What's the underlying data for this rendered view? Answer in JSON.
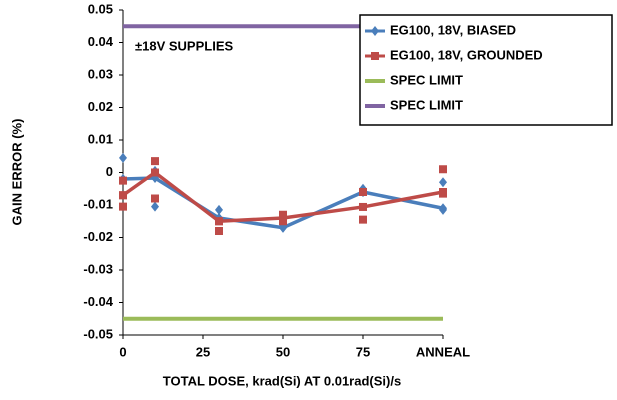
{
  "chart_data": {
    "type": "line",
    "xlabel": "TOTAL DOSE, krad(Si) AT 0.01rad(Si)/s",
    "ylabel": "GAIN ERROR (%)",
    "annotation": "±18V SUPPLIES",
    "x": [
      0,
      10,
      30,
      50,
      75,
      100
    ],
    "xlim": [
      0,
      100
    ],
    "xticks": [
      0,
      25,
      50,
      75,
      {
        "value": 100,
        "label": "ANNEAL"
      }
    ],
    "ylim": [
      -0.05,
      0.05
    ],
    "yticks": [
      0.05,
      0.04,
      0.03,
      0.02,
      0.01,
      0,
      -0.01,
      -0.02,
      -0.03,
      -0.04,
      -0.05
    ],
    "series": [
      {
        "name": "EG100, 18V, BIASED",
        "color": "#4a7ebb",
        "marker": "diamond",
        "values": [
          -0.002,
          -0.0017,
          -0.014,
          -0.017,
          -0.006,
          -0.011
        ],
        "samples_x": [
          0,
          0,
          10,
          10,
          30,
          30,
          50,
          50,
          75,
          75,
          100,
          100
        ],
        "samples": [
          0.0045,
          -0.002,
          -0.0105,
          0.0005,
          -0.0115,
          -0.014,
          -0.016,
          -0.017,
          -0.006,
          -0.005,
          -0.0115,
          -0.003
        ]
      },
      {
        "name": "EG100, 18V, GROUNDED",
        "color": "#be4b48",
        "marker": "square",
        "values": [
          -0.007,
          0.0,
          -0.015,
          -0.014,
          -0.0106,
          -0.006
        ],
        "samples_x": [
          0,
          0,
          0,
          10,
          10,
          10,
          30,
          30,
          50,
          50,
          75,
          75,
          100,
          100
        ],
        "samples": [
          -0.0025,
          -0.0105,
          -0.007,
          0.0035,
          -0.008,
          0.0,
          -0.018,
          -0.015,
          -0.013,
          -0.015,
          -0.0145,
          -0.006,
          0.001,
          -0.0065
        ]
      }
    ],
    "spec_limits": [
      {
        "name": "SPEC LIMIT",
        "color": "#9bbb59",
        "value": -0.045
      },
      {
        "name": "SPEC LIMIT",
        "color": "#8064a2",
        "value": 0.045
      }
    ],
    "legend": "upper right"
  }
}
